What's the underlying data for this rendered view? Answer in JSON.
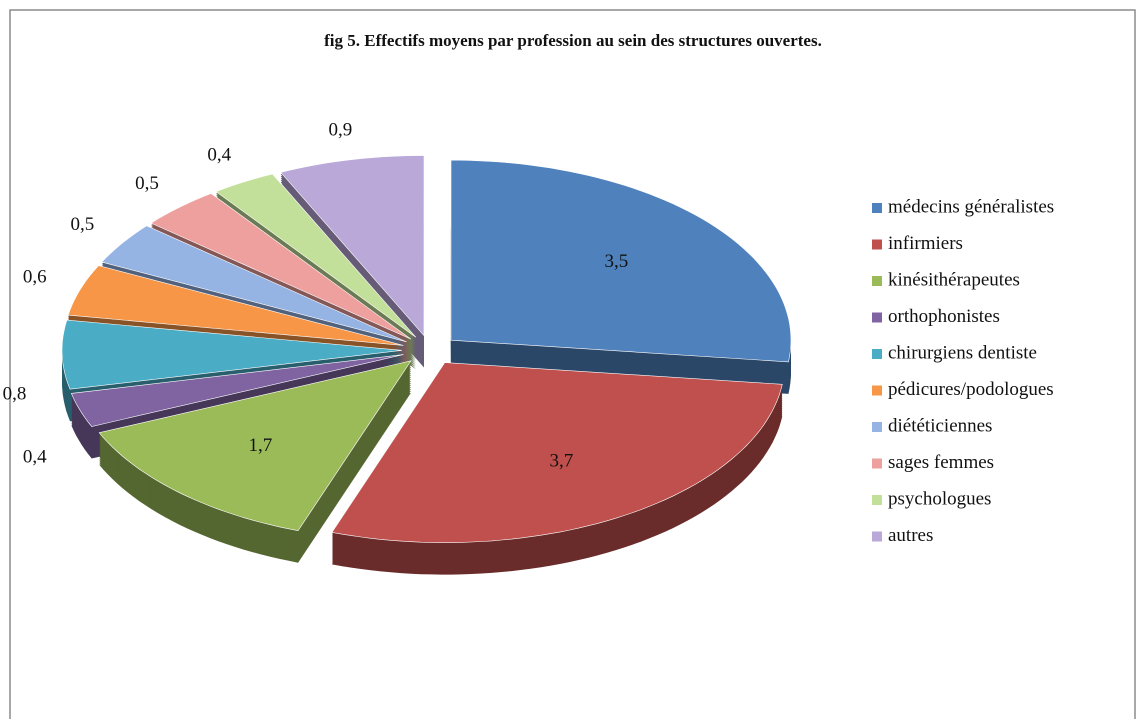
{
  "chart_data": {
    "type": "pie",
    "title": "fig 5. Effectifs moyens par profession au sein des structures ouvertes.",
    "categories": [
      "médecins généralistes",
      "infirmiers",
      "kinésithérapeutes",
      "orthophonistes",
      "chirurgiens dentiste",
      "pédicures/podologues",
      "diététiciennes",
      "sages femmes",
      "psychologues",
      "autres"
    ],
    "values": [
      3.5,
      3.7,
      1.7,
      0.4,
      0.8,
      0.6,
      0.5,
      0.5,
      0.4,
      0.9
    ],
    "value_labels": [
      "3,5",
      "3,7",
      "1,7",
      "0,4",
      "0,8",
      "0,6",
      "0,5",
      "0,5",
      "0,4",
      "0,9"
    ],
    "colors": [
      "#4f81bd",
      "#c0504d",
      "#9bbb59",
      "#8064a2",
      "#4bacc6",
      "#f79646",
      "#95b3e3",
      "#eea09e",
      "#c3e09b",
      "#b9a8d8"
    ],
    "legend": "right"
  }
}
